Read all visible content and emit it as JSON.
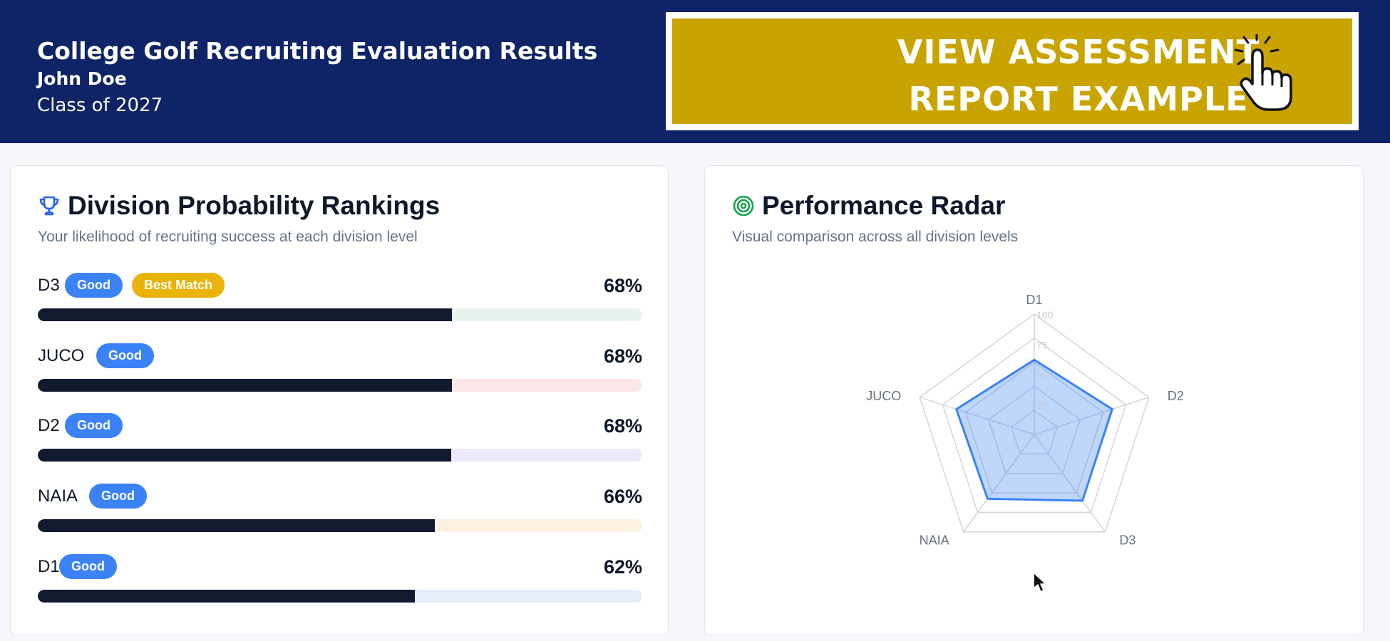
{
  "header": {
    "title": "College Golf Recruiting Evaluation Results",
    "name": "John Doe",
    "class_year": "Class of 2027",
    "cta_line1": "VIEW ASSESSMENT",
    "cta_line2": "REPORT EXAMPLE",
    "cta_icon": "pointer-hand-click-icon"
  },
  "rankings": {
    "title": "Division Probability Rankings",
    "subtitle": "Your likelihood of recruiting success at each division level",
    "icon": "trophy-icon",
    "rows": [
      {
        "label": "D3",
        "badge": "Good",
        "extra_badge": "Best Match",
        "pct_text": "68%",
        "value": 68.5,
        "track_color": "#e6f4ee"
      },
      {
        "label": "JUCO",
        "badge": "Good",
        "pct_text": "68%",
        "value": 68.5,
        "track_color": "#fde6e8"
      },
      {
        "label": "D2",
        "badge": "Good",
        "pct_text": "68%",
        "value": 68.4,
        "track_color": "#ede9fb"
      },
      {
        "label": "NAIA",
        "badge": "Good",
        "pct_text": "66%",
        "value": 65.7,
        "track_color": "#fdf1e1"
      },
      {
        "label": "D1",
        "badge": "Good",
        "pct_text": "62%",
        "value": 62.4,
        "track_color": "#e6edfb"
      }
    ]
  },
  "radar": {
    "title": "Performance Radar",
    "subtitle": "Visual comparison across all division levels",
    "icon": "target-icon",
    "chart_data": {
      "type": "radar",
      "axes": [
        "D1",
        "D2",
        "D3",
        "NAIA",
        "JUCO"
      ],
      "values": [
        62,
        68,
        68,
        66,
        68
      ],
      "rlim": [
        0,
        100
      ],
      "ticks": [
        "0",
        "25",
        "50",
        "75",
        "100"
      ],
      "fill_color": "#3b82f6"
    }
  },
  "colors": {
    "header_bg": "#0f2466",
    "cta_bg": "#c9a400",
    "bar_fill": "#111a2e",
    "good_badge": "#3b82f6",
    "best_badge": "#eab308"
  }
}
